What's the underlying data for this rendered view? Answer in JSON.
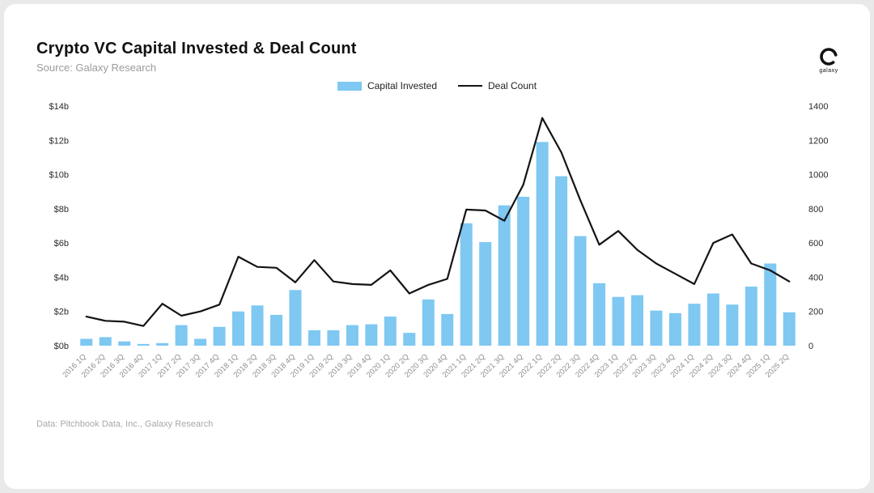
{
  "header": {
    "title": "Crypto VC Capital Invested & Deal Count",
    "subtitle": "Source: Galaxy Research",
    "logo_text": "galaxy"
  },
  "legend": [
    {
      "label": "Capital Invested",
      "type": "bar",
      "color": "#7ec8f2"
    },
    {
      "label": "Deal Count",
      "type": "line",
      "color": "#141414"
    }
  ],
  "footer": {
    "note": "Data: Pitchbook Data, Inc., Galaxy Research"
  },
  "chart_data": {
    "type": "bar+line combo",
    "title": "Crypto VC Capital Invested & Deal Count",
    "categories": [
      "2016 1Q",
      "2016 2Q",
      "2016 3Q",
      "2016 4Q",
      "2017 1Q",
      "2017 2Q",
      "2017 3Q",
      "2017 4Q",
      "2018 1Q",
      "2018 2Q",
      "2018 3Q",
      "2018 4Q",
      "2019 1Q",
      "2019 2Q",
      "2019 3Q",
      "2019 4Q",
      "2020 1Q",
      "2020 2Q",
      "2020 3Q",
      "2020 4Q",
      "2021 1Q",
      "2021 2Q",
      "2021 3Q",
      "2021 4Q",
      "2022 1Q",
      "2022 2Q",
      "2022 3Q",
      "2022 4Q",
      "2023 1Q",
      "2023 2Q",
      "2023 3Q",
      "2023 4Q",
      "2024 1Q",
      "2024 2Q",
      "2024 3Q",
      "2024 4Q",
      "2025 1Q",
      "2025 2Q"
    ],
    "series": [
      {
        "name": "Capital Invested",
        "type": "bar",
        "axis": "left",
        "unit": "$b",
        "color": "#7ec8f2",
        "values": [
          0.4,
          0.5,
          0.25,
          0.1,
          0.15,
          1.2,
          0.4,
          1.1,
          2.0,
          2.35,
          1.8,
          3.25,
          0.9,
          0.9,
          1.2,
          1.25,
          1.7,
          0.75,
          2.7,
          1.85,
          7.15,
          6.05,
          8.2,
          8.7,
          11.9,
          9.9,
          6.4,
          3.65,
          2.85,
          2.95,
          2.05,
          1.9,
          2.45,
          3.05,
          2.4,
          3.45,
          4.8,
          1.95
        ]
      },
      {
        "name": "Deal Count",
        "type": "line",
        "axis": "right",
        "color": "#141414",
        "values": [
          170,
          145,
          140,
          115,
          245,
          175,
          200,
          240,
          520,
          460,
          455,
          370,
          500,
          375,
          360,
          355,
          440,
          305,
          355,
          390,
          795,
          790,
          730,
          940,
          1330,
          1130,
          850,
          590,
          670,
          560,
          480,
          420,
          360,
          600,
          650,
          480,
          440,
          375
        ]
      }
    ],
    "left_axis": {
      "min": 0,
      "max": 14,
      "ticks": [
        "$0b",
        "$2b",
        "$4b",
        "$6b",
        "$8b",
        "$10b",
        "$12b",
        "$14b"
      ]
    },
    "right_axis": {
      "min": 0,
      "max": 1400,
      "ticks": [
        "0",
        "200",
        "400",
        "600",
        "800",
        "1000",
        "1200",
        "1400"
      ]
    },
    "grid": false,
    "legend_position": "top-center",
    "x_label_rotation": -45
  }
}
